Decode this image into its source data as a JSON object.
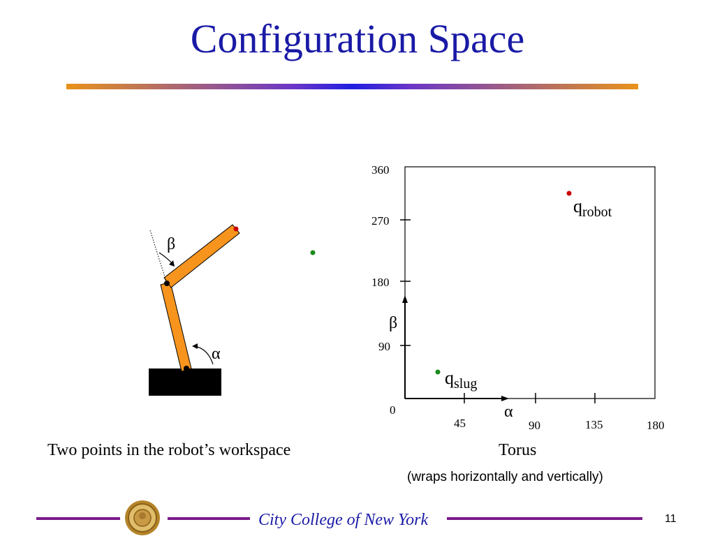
{
  "slide": {
    "title": "Configuration Space",
    "page_number": "11",
    "footer": "City College of New York"
  },
  "workspace": {
    "caption": "Two points in the robot’s workspace",
    "alpha_label": "α",
    "beta_label": "β"
  },
  "cspace": {
    "y_ticks": [
      "0",
      "90",
      "180",
      "270",
      "360"
    ],
    "x_ticks": [
      "45",
      "90",
      "135",
      "180"
    ],
    "y_axis_symbol": "β",
    "x_axis_symbol": "α",
    "q_robot": {
      "base": "q",
      "sub": "robot"
    },
    "q_slug": {
      "base": "q",
      "sub": "slug"
    },
    "caption": "Torus",
    "note": "(wraps horizontally and vertically)"
  },
  "colors": {
    "title": "#1a1aa6",
    "arm": "#f7941d",
    "robot_point": "#cc0000",
    "slug_point": "#1a8a1a",
    "footer_rule": "#7a1a8a"
  }
}
